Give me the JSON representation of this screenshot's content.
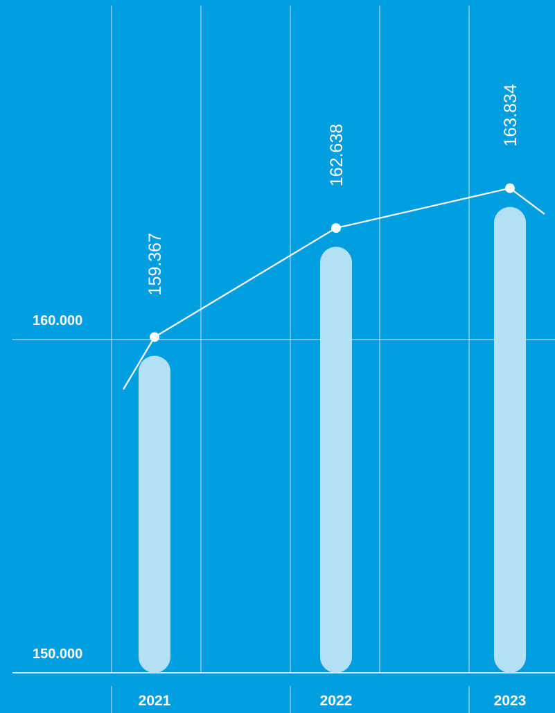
{
  "chart_data": {
    "type": "bar",
    "categories": [
      "2021",
      "2022",
      "2023"
    ],
    "series": [
      {
        "values": [
          159.367,
          162.638,
          163.834
        ]
      }
    ],
    "data_labels": [
      "159.367",
      "162.638",
      "163.834"
    ],
    "y_ticks": [
      {
        "value": 150,
        "label": "150.000"
      },
      {
        "value": 160,
        "label": "160.000"
      }
    ],
    "ylim": [
      150,
      170
    ],
    "title": "",
    "xlabel": "",
    "ylabel": "",
    "overlay": "line connecting bar values",
    "grid": true,
    "colors": {
      "background": "#009edf",
      "bar": "#b3e0f5",
      "line": "#ffffff",
      "grid": "#ffffff"
    }
  }
}
